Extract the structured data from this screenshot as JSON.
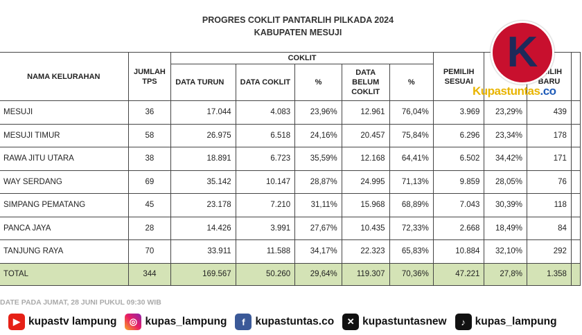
{
  "title_line1": "PROGRES COKLIT PANTARLIH PILKADA 2024",
  "title_line2": "KABUPATEN MESUJI",
  "headers": {
    "nama": "NAMA KELURAHAN",
    "jumlah_tps": "JUMLAH TPS",
    "coklit": "COKLIT",
    "data_turun": "DATA TURUN",
    "data_coklit": "DATA COKLIT",
    "pct1": "%",
    "data_belum": "DATA BELUM COKLIT",
    "pct2": "%",
    "pemilih_sesuai": "PEMILIH SESUAI",
    "pemilih_baru": "EMILIH BARU"
  },
  "rows": [
    {
      "nama": "MESUJI",
      "tps": "36",
      "turun": "17.044",
      "coklit": "4.083",
      "p1": "23,96%",
      "belum": "12.961",
      "p2": "76,04%",
      "sesuai": "3.969",
      "p3": "23,29%",
      "baru": "439"
    },
    {
      "nama": "MESUJI TIMUR",
      "tps": "58",
      "turun": "26.975",
      "coklit": "6.518",
      "p1": "24,16%",
      "belum": "20.457",
      "p2": "75,84%",
      "sesuai": "6.296",
      "p3": "23,34%",
      "baru": "178"
    },
    {
      "nama": "RAWA JITU UTARA",
      "tps": "38",
      "turun": "18.891",
      "coklit": "6.723",
      "p1": "35,59%",
      "belum": "12.168",
      "p2": "64,41%",
      "sesuai": "6.502",
      "p3": "34,42%",
      "baru": "171"
    },
    {
      "nama": "WAY SERDANG",
      "tps": "69",
      "turun": "35.142",
      "coklit": "10.147",
      "p1": "28,87%",
      "belum": "24.995",
      "p2": "71,13%",
      "sesuai": "9.859",
      "p3": "28,05%",
      "baru": "76"
    },
    {
      "nama": "SIMPANG PEMATANG",
      "tps": "45",
      "turun": "23.178",
      "coklit": "7.210",
      "p1": "31,11%",
      "belum": "15.968",
      "p2": "68,89%",
      "sesuai": "7.043",
      "p3": "30,39%",
      "baru": "118"
    },
    {
      "nama": "PANCA JAYA",
      "tps": "28",
      "turun": "14.426",
      "coklit": "3.991",
      "p1": "27,67%",
      "belum": "10.435",
      "p2": "72,33%",
      "sesuai": "2.668",
      "p3": "18,49%",
      "baru": "84"
    },
    {
      "nama": "TANJUNG RAYA",
      "tps": "70",
      "turun": "33.911",
      "coklit": "11.588",
      "p1": "34,17%",
      "belum": "22.323",
      "p2": "65,83%",
      "sesuai": "10.884",
      "p3": "32,10%",
      "baru": "292"
    }
  ],
  "total": {
    "nama": "TOTAL",
    "tps": "344",
    "turun": "169.567",
    "coklit": "50.260",
    "p1": "29,64%",
    "belum": "119.307",
    "p2": "70,36%",
    "sesuai": "47.221",
    "p3": "27,8%",
    "baru": "1.358"
  },
  "note": "DATE PADA JUMAT, 28 JUNI PUKUL 09:30 WIB",
  "logo": {
    "letter": "K",
    "text_main": "Kupastuntas",
    "text_suffix": ".co"
  },
  "social": [
    {
      "icon": "youtube-icon",
      "label": "kupastv lampung"
    },
    {
      "icon": "instagram-icon",
      "label": "kupas_lampung"
    },
    {
      "icon": "facebook-icon",
      "label": "kupastuntas.co"
    },
    {
      "icon": "x-icon",
      "label": "kupastuntasnew"
    },
    {
      "icon": "tiktok-icon",
      "label": "kupas_lampung"
    }
  ]
}
